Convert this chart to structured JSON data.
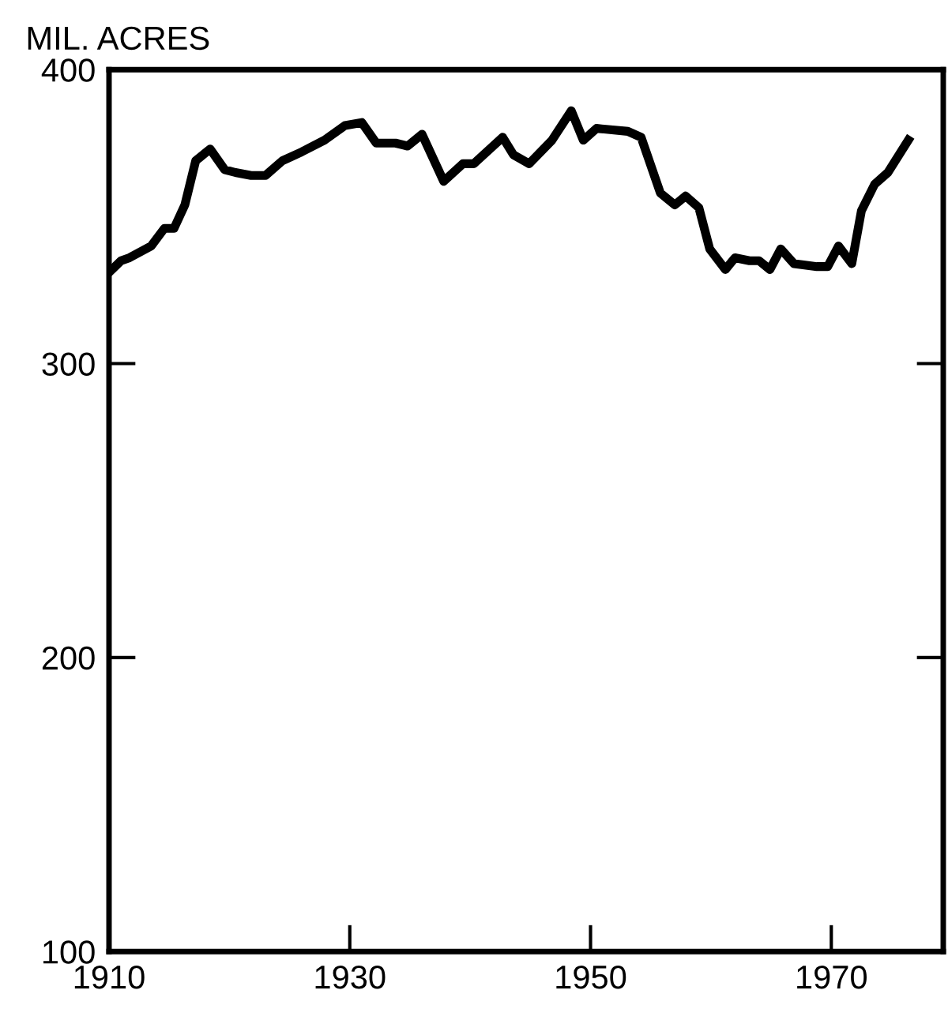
{
  "chart_data": {
    "type": "line",
    "ylabel": "MIL. ACRES",
    "x": [
      1910,
      1911,
      1911.7,
      1913.5,
      1914.6,
      1915.4,
      1916.3,
      1917.2,
      1918.4,
      1919.6,
      1920.5,
      1921.8,
      1923,
      1924.4,
      1926,
      1927.9,
      1929.6,
      1931,
      1932.2,
      1933.8,
      1934.8,
      1936,
      1937.8,
      1939.4,
      1940.3,
      1942.7,
      1943.6,
      1944.9,
      1946.8,
      1948.4,
      1949.4,
      1950.5,
      1953.1,
      1954.2,
      1955.8,
      1957,
      1957.9,
      1959,
      1959.9,
      1961.2,
      1962,
      1963.2,
      1964,
      1964.9,
      1965.8,
      1966.9,
      1968.8,
      1969.7,
      1970.6,
      1971.7,
      1972.5,
      1973.6,
      1974.7,
      1976.4
    ],
    "series": [
      {
        "color": "#000000",
        "values": [
          331,
          335,
          336,
          340,
          346,
          346,
          354,
          369,
          373,
          366,
          365,
          364,
          364,
          369,
          372,
          376,
          381,
          382,
          375,
          375,
          374,
          378,
          362,
          368,
          368,
          377,
          371,
          368,
          376,
          386,
          376,
          380,
          379,
          377,
          358,
          354,
          357,
          353,
          339,
          332,
          336,
          335,
          335,
          332,
          339,
          334,
          333,
          333,
          340,
          334,
          352,
          361,
          365,
          376
        ]
      }
    ],
    "xlim": [
      1910,
      1979.3
    ],
    "ylim": [
      100,
      400
    ],
    "xticks": [
      1910,
      1930,
      1950,
      1970
    ],
    "yticks": [
      100,
      200,
      300,
      400
    ],
    "grid": false,
    "legend": false,
    "marker": "none",
    "line_style": "solid"
  }
}
